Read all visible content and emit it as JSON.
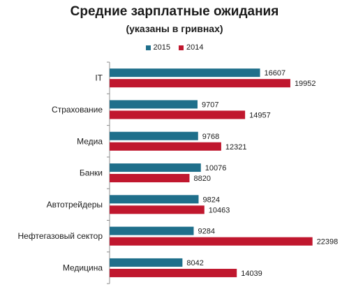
{
  "title": "Средние зарплатные ожидания",
  "subtitle": "(указаны в гривнах)",
  "colors": {
    "2015": "#1f6f8b",
    "2014": "#c0172e",
    "axis": "#8c8c8c"
  },
  "chart_data": {
    "type": "bar",
    "orientation": "horizontal",
    "title": "Средние зарплатные ожидания",
    "subtitle": "(указаны в гривнах)",
    "legend_position": "top",
    "categories": [
      "IT",
      "Страхование",
      "Медиа",
      "Банки",
      "Автотрейдеры",
      "Нефтегазовый сектор",
      "Медицина"
    ],
    "series": [
      {
        "name": "2015",
        "values": [
          16607,
          9707,
          9768,
          10076,
          9824,
          9284,
          8042
        ]
      },
      {
        "name": "2014",
        "values": [
          19952,
          14957,
          12321,
          8820,
          10463,
          22398,
          14039
        ]
      }
    ],
    "xlim": [
      0,
      23500
    ],
    "grid": false
  }
}
